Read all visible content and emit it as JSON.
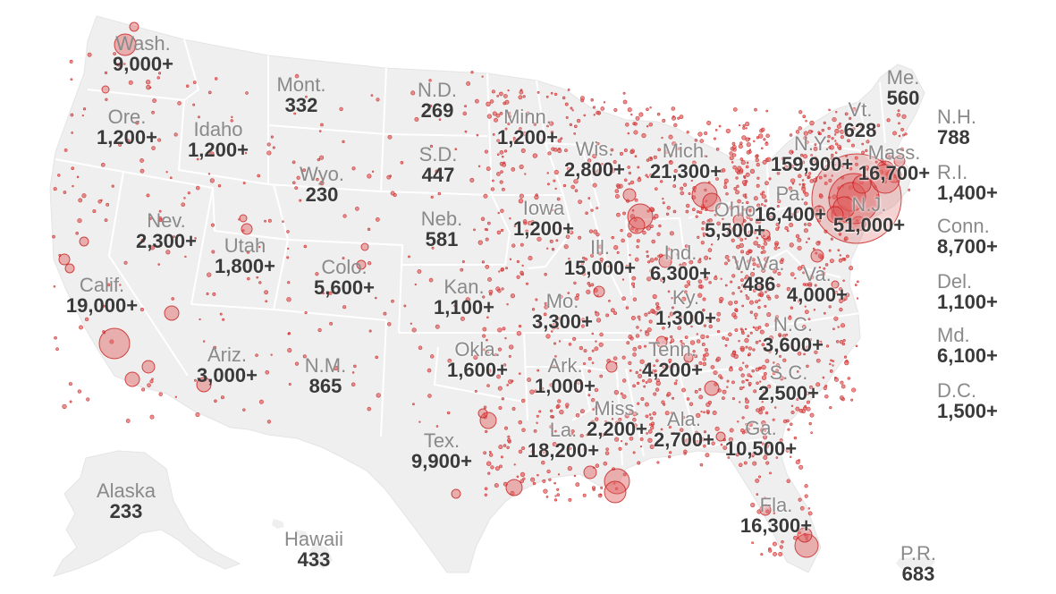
{
  "colors": {
    "land": "#efefef",
    "border": "#ffffff",
    "bubble_fill": "#e06060",
    "bubble_stroke": "#c81e1e",
    "name_text": "#8a8a8a",
    "count_text": "#3a3a3a"
  },
  "states": [
    {
      "key": "wa",
      "name": "Wash.",
      "count": "9,000+"
    },
    {
      "key": "or",
      "name": "Ore.",
      "count": "1,200+"
    },
    {
      "key": "ca",
      "name": "Calif.",
      "count": "19,000+"
    },
    {
      "key": "id",
      "name": "Idaho",
      "count": "1,200+"
    },
    {
      "key": "nv",
      "name": "Nev.",
      "count": "2,300+"
    },
    {
      "key": "mt",
      "name": "Mont.",
      "count": "332"
    },
    {
      "key": "wy",
      "name": "Wyo.",
      "count": "230"
    },
    {
      "key": "ut",
      "name": "Utah",
      "count": "1,800+"
    },
    {
      "key": "az",
      "name": "Ariz.",
      "count": "3,000+"
    },
    {
      "key": "co",
      "name": "Colo.",
      "count": "5,600+"
    },
    {
      "key": "nm",
      "name": "N.M.",
      "count": "865"
    },
    {
      "key": "nd",
      "name": "N.D.",
      "count": "269"
    },
    {
      "key": "sd",
      "name": "S.D.",
      "count": "447"
    },
    {
      "key": "ne",
      "name": "Neb.",
      "count": "581"
    },
    {
      "key": "ks",
      "name": "Kan.",
      "count": "1,100+"
    },
    {
      "key": "ok",
      "name": "Okla.",
      "count": "1,600+"
    },
    {
      "key": "tx",
      "name": "Tex.",
      "count": "9,900+"
    },
    {
      "key": "mn",
      "name": "Minn.",
      "count": "1,200+"
    },
    {
      "key": "ia",
      "name": "Iowa",
      "count": "1,200+"
    },
    {
      "key": "mo",
      "name": "Mo.",
      "count": "3,300+"
    },
    {
      "key": "ar",
      "name": "Ark.",
      "count": "1,000+"
    },
    {
      "key": "la",
      "name": "La.",
      "count": "18,200+"
    },
    {
      "key": "wi",
      "name": "Wis.",
      "count": "2,800+"
    },
    {
      "key": "il",
      "name": "Ill.",
      "count": "15,000+"
    },
    {
      "key": "ms",
      "name": "Miss.",
      "count": "2,200+"
    },
    {
      "key": "mi",
      "name": "Mich.",
      "count": "21,300+"
    },
    {
      "key": "in",
      "name": "Ind.",
      "count": "6,300+"
    },
    {
      "key": "ky",
      "name": "Ky.",
      "count": "1,300+"
    },
    {
      "key": "tn",
      "name": "Tenn.",
      "count": "4,200+"
    },
    {
      "key": "al",
      "name": "Ala.",
      "count": "2,700+"
    },
    {
      "key": "oh",
      "name": "Ohio",
      "count": "5,500+"
    },
    {
      "key": "ga",
      "name": "Ga.",
      "count": "10,500+"
    },
    {
      "key": "fl",
      "name": "Fla.",
      "count": "16,300+"
    },
    {
      "key": "wv",
      "name": "W.Va.",
      "count": "486"
    },
    {
      "key": "va",
      "name": "Va.",
      "count": "4,000+"
    },
    {
      "key": "nc",
      "name": "N.C.",
      "count": "3,600+"
    },
    {
      "key": "sc",
      "name": "S.C.",
      "count": "2,500+"
    },
    {
      "key": "pa",
      "name": "Pa.",
      "count": "16,400+"
    },
    {
      "key": "ny",
      "name": "N.Y.",
      "count": "159,900+"
    },
    {
      "key": "nj",
      "name": "N.J.",
      "count": "51,000+"
    },
    {
      "key": "vt",
      "name": "Vt.",
      "count": "628"
    },
    {
      "key": "me",
      "name": "Me.",
      "count": "560"
    },
    {
      "key": "ma",
      "name": "Mass.",
      "count": "16,700+"
    },
    {
      "key": "ak",
      "name": "Alaska",
      "count": "233"
    },
    {
      "key": "hi",
      "name": "Hawaii",
      "count": "433"
    },
    {
      "key": "pr",
      "name": "P.R.",
      "count": "683"
    }
  ],
  "east_column": [
    {
      "key": "nh",
      "name": "N.H.",
      "count": "788"
    },
    {
      "key": "ri",
      "name": "R.I.",
      "count": "1,400+"
    },
    {
      "key": "ct",
      "name": "Conn.",
      "count": "8,700+"
    },
    {
      "key": "de",
      "name": "Del.",
      "count": "1,100+"
    },
    {
      "key": "md",
      "name": "Md.",
      "count": "6,100+"
    },
    {
      "key": "dc",
      "name": "D.C.",
      "count": "1,500+"
    }
  ]
}
